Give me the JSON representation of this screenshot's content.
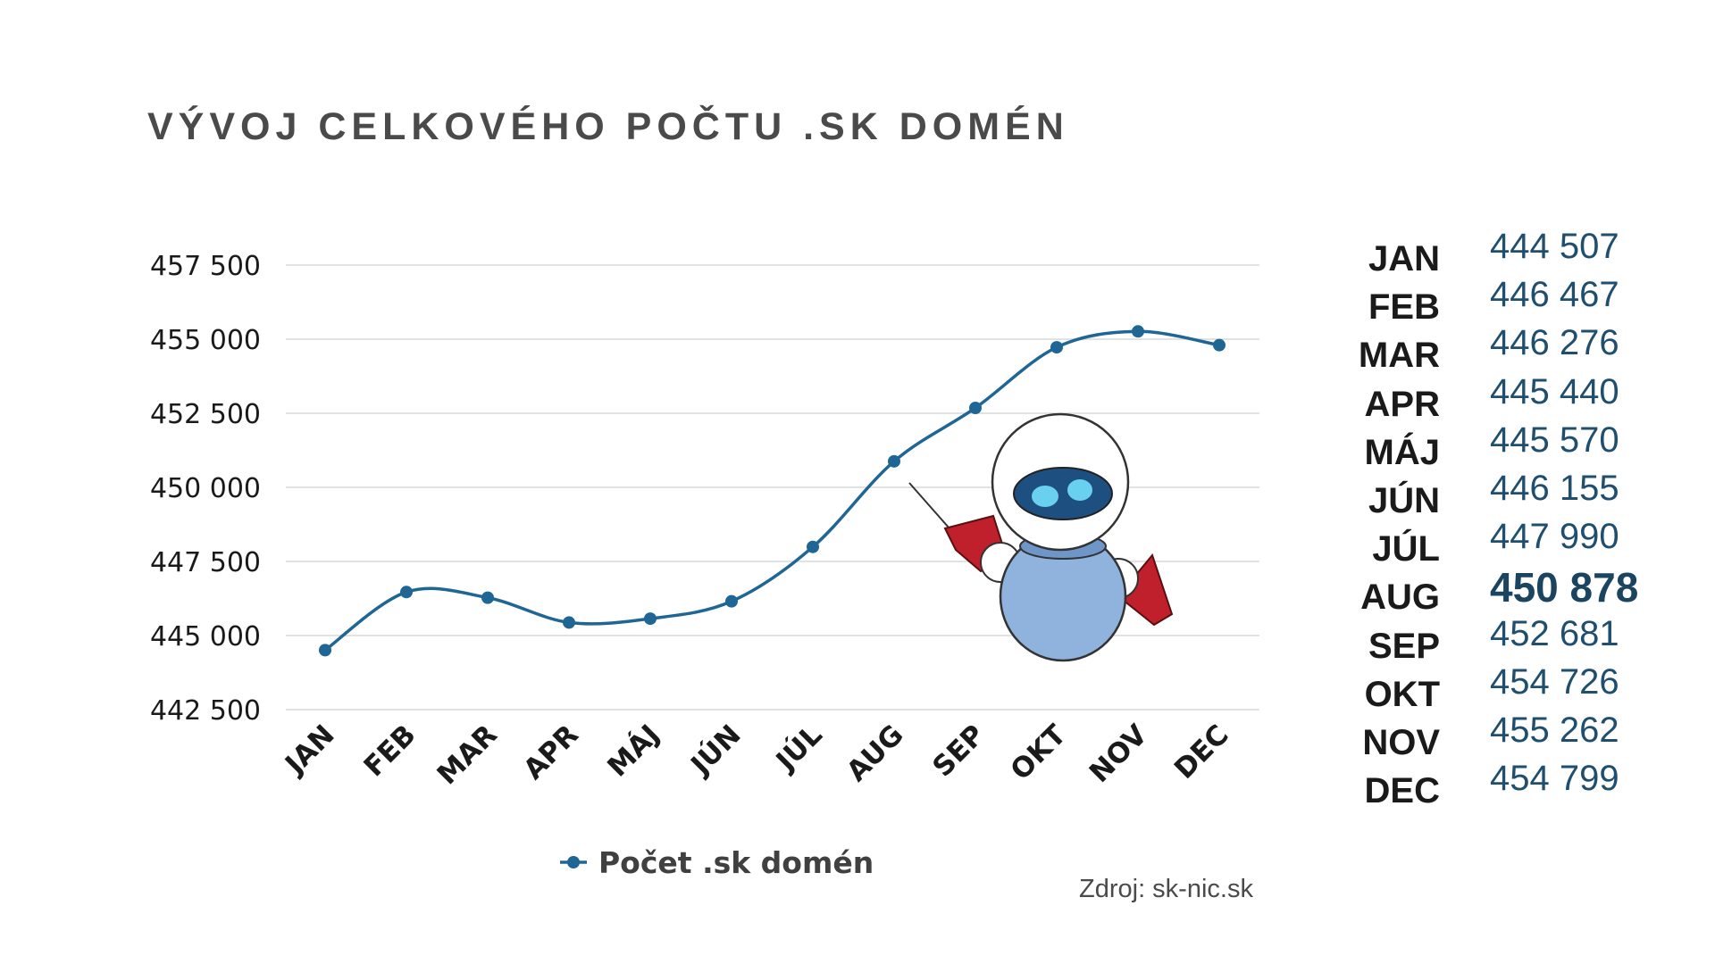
{
  "title": "VÝVOJ CELKOVÉHO POČTU .SK DOMÉN",
  "source": "Zdroj: sk-nic.sk",
  "colors": {
    "line": "#1f6694",
    "title": "#4a4a4a",
    "table_value": "#1f4e6e",
    "grid": "#d9d9d9"
  },
  "mascot": "robot-mascot-icon",
  "chart_data": {
    "type": "line",
    "categories": [
      "JAN",
      "FEB",
      "MAR",
      "APR",
      "MÁJ",
      "JÚN",
      "JÚL",
      "AUG",
      "SEP",
      "OKT",
      "NOV",
      "DEC"
    ],
    "series": [
      {
        "name": "Počet .sk domén",
        "values": [
          444507,
          446467,
          446276,
          445440,
          445570,
          446155,
          447990,
          450878,
          452681,
          454726,
          455262,
          454799
        ]
      }
    ],
    "yticks": [
      "442 500",
      "445 000",
      "447 500",
      "450 000",
      "452 500",
      "455 000",
      "457 500"
    ],
    "ylim": [
      442500,
      457500
    ],
    "grid": true,
    "legend": "bottom"
  },
  "table": {
    "rows": [
      {
        "month": "JAN",
        "value": "444 507"
      },
      {
        "month": "FEB",
        "value": "446 467"
      },
      {
        "month": "MAR",
        "value": "446 276"
      },
      {
        "month": "APR",
        "value": "445 440"
      },
      {
        "month": "MÁJ",
        "value": "445 570"
      },
      {
        "month": "JÚN",
        "value": "446 155"
      },
      {
        "month": "JÚL",
        "value": "447 990"
      },
      {
        "month": "AUG",
        "value": "450 878",
        "highlight": true
      },
      {
        "month": "SEP",
        "value": "452 681"
      },
      {
        "month": "OKT",
        "value": "454 726"
      },
      {
        "month": "NOV",
        "value": "455 262"
      },
      {
        "month": "DEC",
        "value": "454 799"
      }
    ]
  }
}
